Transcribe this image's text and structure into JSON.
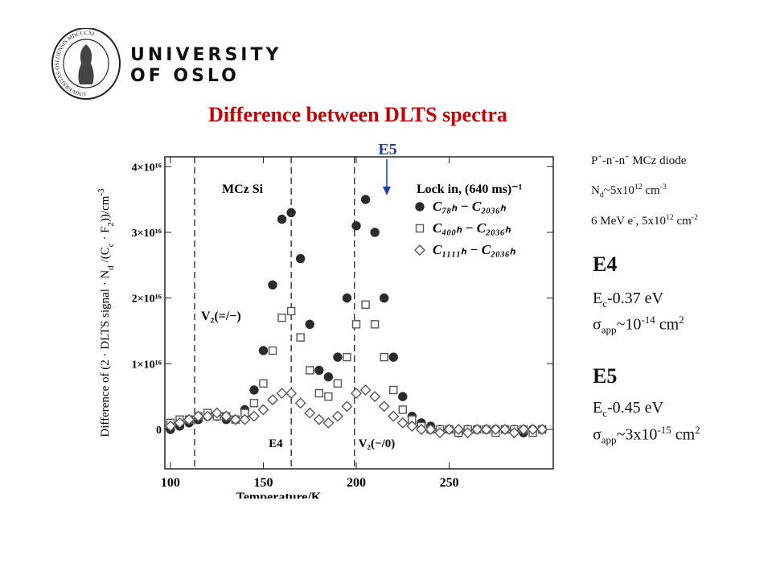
{
  "header": {
    "line1": "UNIVERSITY",
    "line2": "OF OSLO",
    "seal_text": "UNIVERSITAS OSLOENSIS MDCCCXI"
  },
  "title": "Difference between DLTS spectra",
  "pointer_label": "E5",
  "sample": [
    [
      "P",
      {
        "sup": "+"
      },
      "-n",
      {
        "sup": "-"
      },
      "-n",
      {
        "sup": "+"
      },
      " MCz diode"
    ],
    [
      "N",
      {
        "sub": "d"
      },
      "~5x10",
      {
        "sup": "12"
      },
      " cm",
      {
        "sup": "-3"
      }
    ],
    [
      "6 MeV e",
      {
        "sup": "-"
      },
      ", 5x10",
      {
        "sup": "12"
      },
      " cm",
      {
        "sup": "-2"
      }
    ]
  ],
  "levels": [
    {
      "name": "E4",
      "energy": [
        "E",
        {
          "sub": "c"
        },
        "-0.37 eV"
      ],
      "cross_section": [
        "σ",
        {
          "sub": "app"
        },
        "~10",
        {
          "sup": "-14"
        },
        " cm",
        {
          "sup": "2"
        }
      ]
    },
    {
      "name": "E5",
      "energy": [
        "E",
        {
          "sub": "c"
        },
        "-0.45 eV"
      ],
      "cross_section": [
        "σ",
        {
          "sub": "app"
        },
        "~3x10",
        {
          "sup": "-15"
        },
        " cm",
        {
          "sup": "2"
        }
      ]
    }
  ],
  "chart_data": {
    "type": "scatter",
    "xlabel": "Temperature/K",
    "ylabel": [
      "Difference of (2 · DLTS signal · N",
      {
        "sub": "d"
      },
      " /(C",
      {
        "sub": "c"
      },
      " · F",
      {
        "sub": "2"
      },
      "))/cm",
      {
        "sup": "-3"
      }
    ],
    "annotations": {
      "sample": "MCz Si",
      "lockin": "Lock in, (640 ms)⁻¹"
    },
    "vlines": [
      {
        "x": 113,
        "label": "V₂(=/−)"
      },
      {
        "x": 165,
        "label": "E4"
      },
      {
        "x": 199,
        "label": "V₂(−/0)"
      }
    ],
    "xlim": [
      97,
      306
    ],
    "xticks": [
      100,
      150,
      200,
      250
    ],
    "ylim": [
      -6000000000000000.0,
      4.15e+16
    ],
    "yticks": [
      0,
      {
        "value": 1e+16,
        "label": "1×10¹⁶"
      },
      {
        "value": 2e+16,
        "label": "2×10¹⁶"
      },
      {
        "value": 3e+16,
        "label": "3×10¹⁶"
      },
      {
        "value": 4e+16,
        "label": "4×10¹⁶"
      }
    ],
    "x": [
      100,
      105,
      110,
      115,
      120,
      125,
      130,
      135,
      140,
      145,
      150,
      155,
      160,
      165,
      170,
      175,
      180,
      185,
      190,
      195,
      200,
      205,
      210,
      215,
      220,
      225,
      230,
      235,
      240,
      245,
      250,
      255,
      260,
      265,
      270,
      275,
      280,
      285,
      290,
      295,
      300
    ],
    "series": [
      {
        "name": "C₇₈ₕ − C₂₀₃₆ₕ",
        "color": "#2a2a2a",
        "marker": "circle",
        "values": [
          0,
          500000000000000.0,
          1000000000000000.0,
          1500000000000000.0,
          2000000000000000.0,
          2000000000000000.0,
          1500000000000000.0,
          1500000000000000.0,
          3000000000000000.0,
          6000000000000000.0,
          1.2e+16,
          2.2e+16,
          3.2e+16,
          3.3e+16,
          2.6e+16,
          1.6e+16,
          9000000000000000.0,
          8000000000000000.0,
          1.1e+16,
          2e+16,
          3.1e+16,
          3.5e+16,
          3e+16,
          2e+16,
          1.1e+16,
          5000000000000000.0,
          2000000000000000.0,
          1000000000000000.0,
          500000000000000.0,
          0,
          0,
          -500000000000000.0,
          0,
          0,
          0,
          0,
          0,
          0,
          -500000000000000.0,
          0,
          0
        ]
      },
      {
        "name": "C₄₀₀ₕ − C₂₀₃₆ₕ",
        "color": "#555555",
        "marker": "square",
        "values": [
          1000000000000000.0,
          1500000000000000.0,
          1500000000000000.0,
          2000000000000000.0,
          2500000000000000.0,
          2000000000000000.0,
          2000000000000000.0,
          1500000000000000.0,
          2500000000000000.0,
          4000000000000000.0,
          7000000000000000.0,
          1.2e+16,
          1.7e+16,
          1.8e+16,
          1.4e+16,
          9000000000000000.0,
          5500000000000000.0,
          5000000000000000.0,
          7000000000000000.0,
          1.1e+16,
          1.6e+16,
          1.9e+16,
          1.6e+16,
          1.1e+16,
          6000000000000000.0,
          3000000000000000.0,
          1500000000000000.0,
          500000000000000.0,
          0,
          0,
          0,
          -500000000000000.0,
          0,
          0,
          0,
          -500000000000000.0,
          0,
          0,
          0,
          -500000000000000.0,
          0
        ]
      },
      {
        "name": "C₁₁₁₁ₕ − C₂₀₃₆ₕ",
        "color": "#555555",
        "marker": "diamond",
        "values": [
          500000000000000.0,
          1000000000000000.0,
          1500000000000000.0,
          2000000000000000.0,
          2000000000000000.0,
          2500000000000000.0,
          2000000000000000.0,
          1500000000000000.0,
          1500000000000000.0,
          2000000000000000.0,
          3000000000000000.0,
          4500000000000000.0,
          5500000000000000.0,
          5500000000000000.0,
          4000000000000000.0,
          2500000000000000.0,
          1500000000000000.0,
          1000000000000000.0,
          2000000000000000.0,
          3500000000000000.0,
          5500000000000000.0,
          6000000000000000.0,
          5000000000000000.0,
          3500000000000000.0,
          2000000000000000.0,
          1000000000000000.0,
          500000000000000.0,
          0,
          0,
          -500000000000000.0,
          0,
          0,
          -500000000000000.0,
          0,
          0,
          0,
          0,
          -500000000000000.0,
          0,
          0,
          0
        ]
      }
    ]
  }
}
